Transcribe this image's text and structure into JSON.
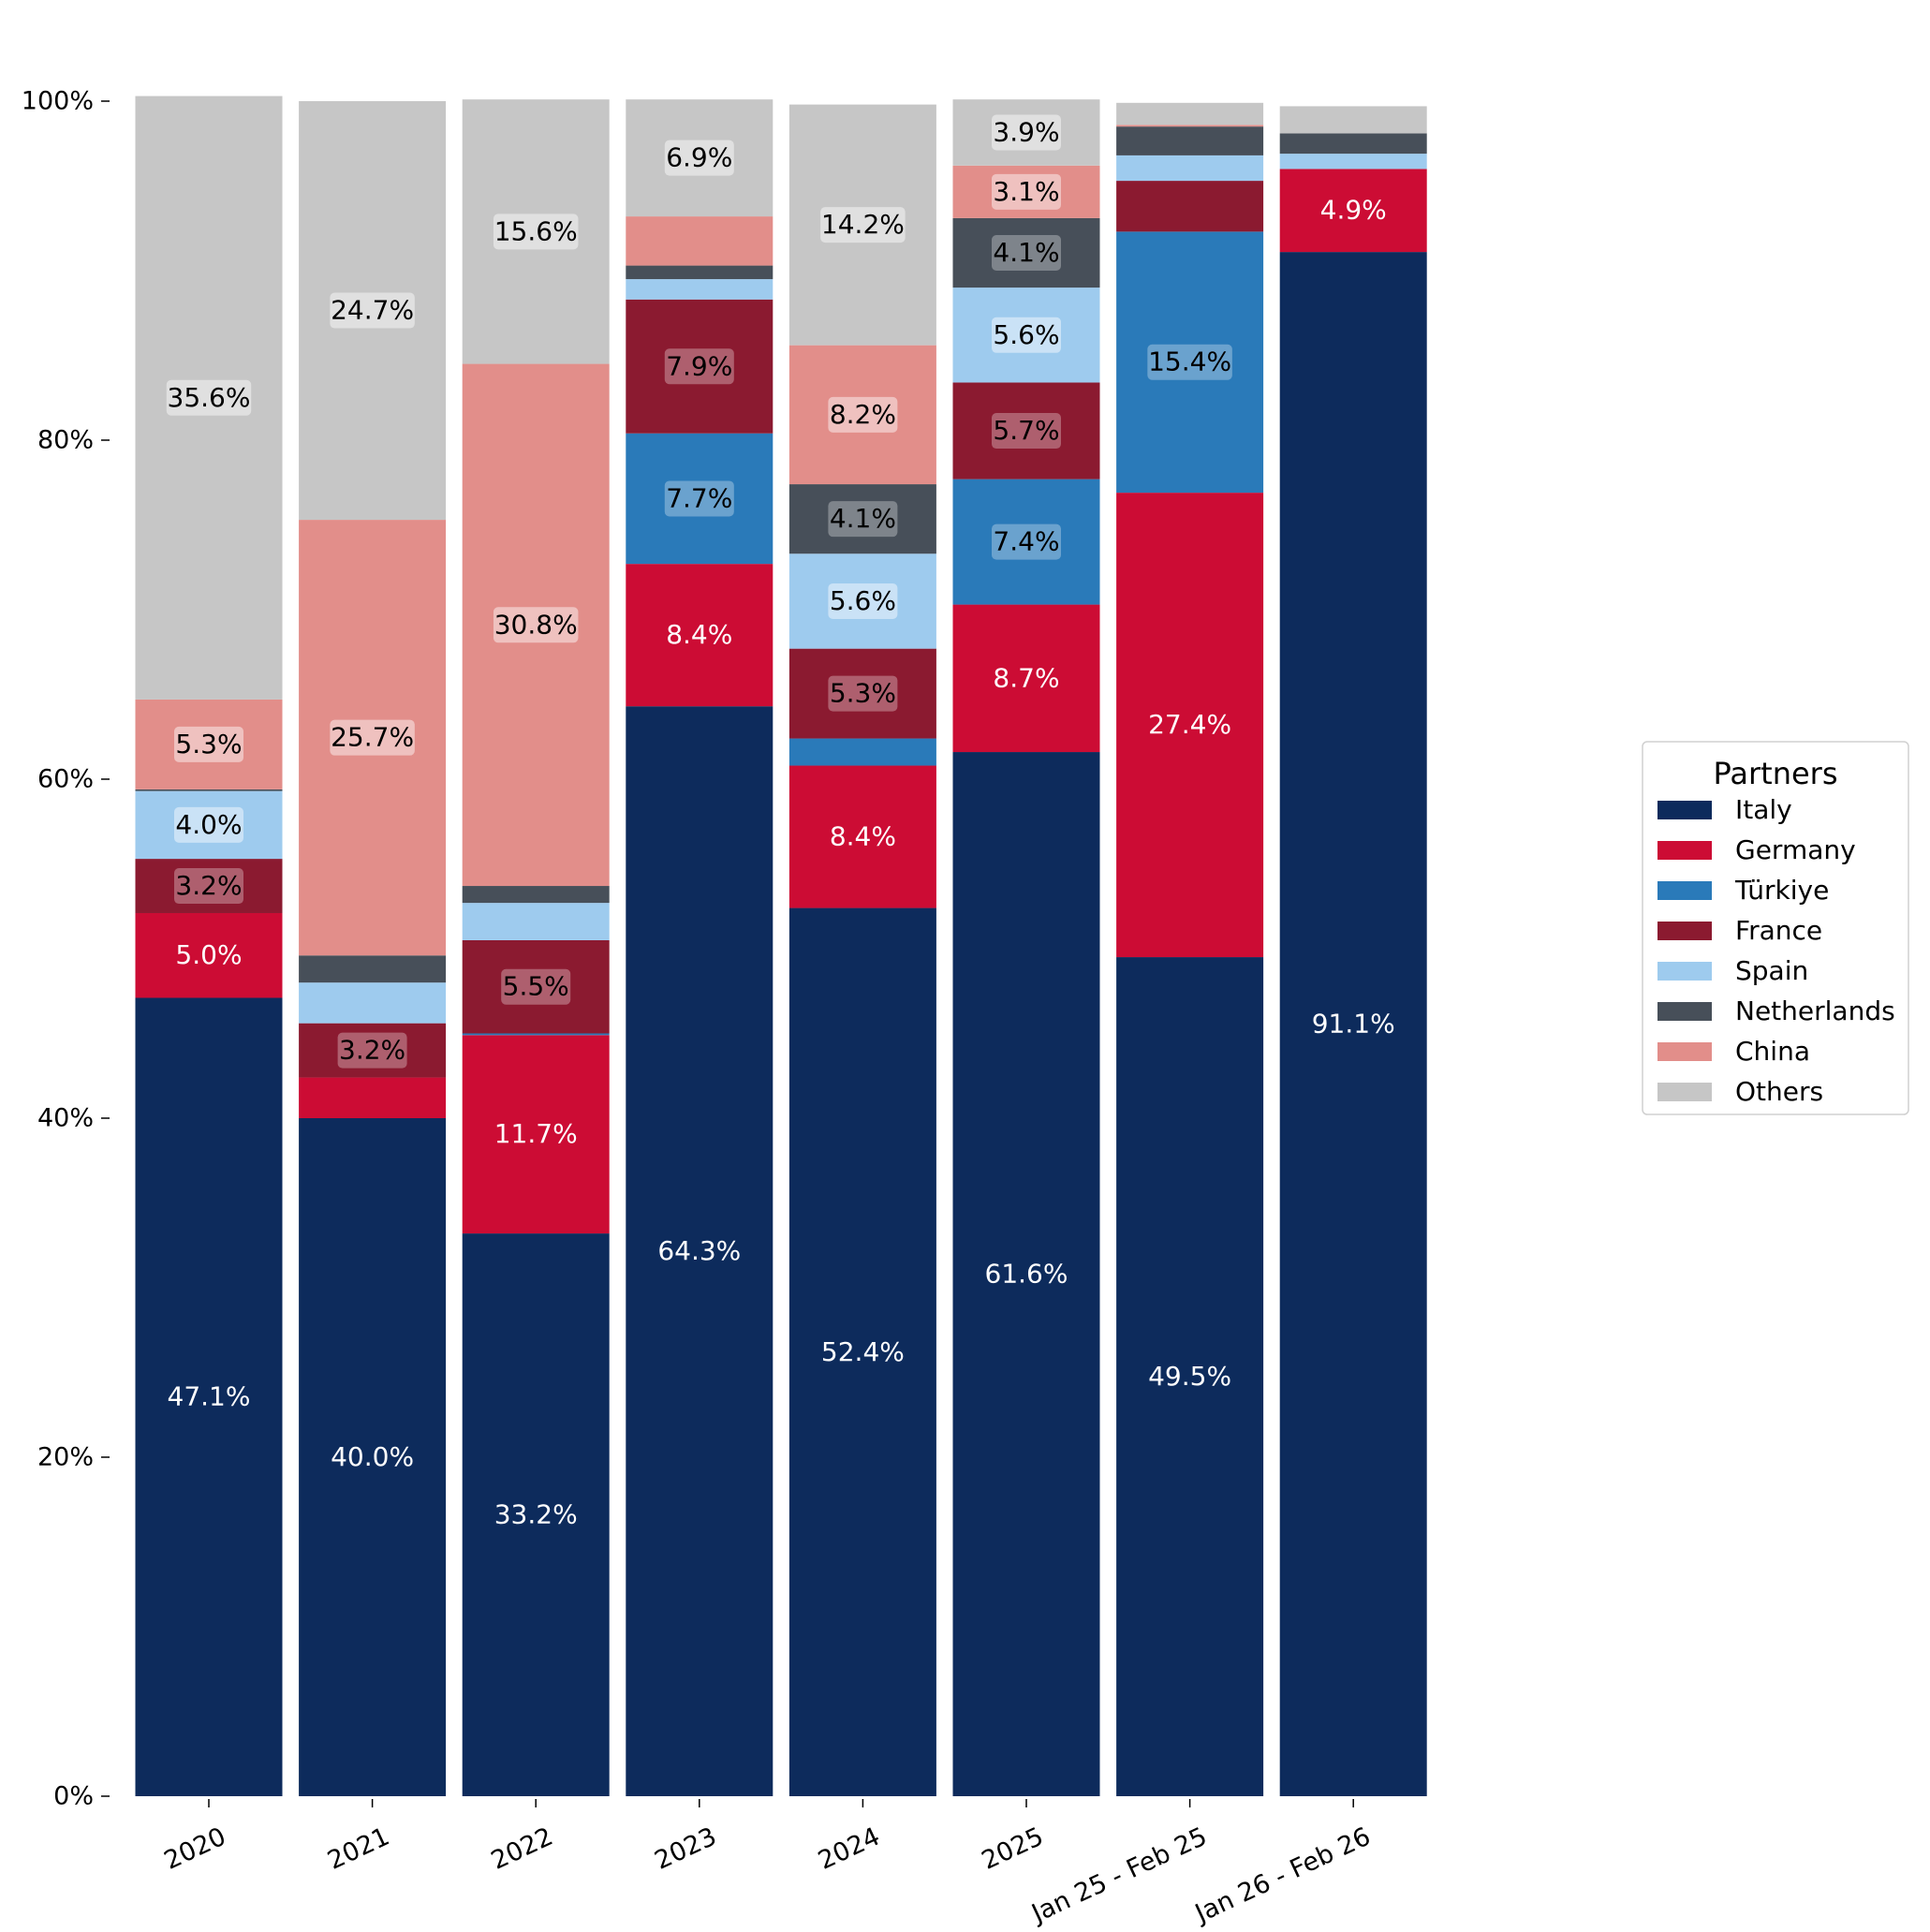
{
  "chart_data": {
    "type": "bar",
    "stacked": true,
    "title": "",
    "xlabel": "",
    "ylabel": "",
    "ylim": [
      0,
      1
    ],
    "y_ticks": [
      {
        "value": 0.0,
        "label": "0%"
      },
      {
        "value": 0.2,
        "label": "20%"
      },
      {
        "value": 0.4,
        "label": "40%"
      },
      {
        "value": 0.6,
        "label": "60%"
      },
      {
        "value": 0.8,
        "label": "80%"
      },
      {
        "value": 1.0,
        "label": "100%"
      }
    ],
    "categories": [
      "2020",
      "2021",
      "2022",
      "2023",
      "2024",
      "2025",
      "Jan 25 - Feb 25",
      "Jan 26 - Feb 26"
    ],
    "legend": {
      "title": "Partners",
      "placement": "right"
    },
    "grid": false,
    "series": [
      {
        "name": "Italy",
        "color": "#0d2b5c",
        "values": [
          0.471,
          0.4,
          0.332,
          0.643,
          0.524,
          0.616,
          0.495,
          0.911
        ],
        "labels": [
          "47.1%",
          "40.0%",
          "33.2%",
          "64.3%",
          "52.4%",
          "61.6%",
          "49.5%",
          "91.1%"
        ]
      },
      {
        "name": "Germany",
        "color": "#cc0c34",
        "values": [
          0.05,
          0.024,
          0.117,
          0.084,
          0.084,
          0.087,
          0.274,
          0.049
        ],
        "labels": [
          "5.0%",
          "",
          "11.7%",
          "8.4%",
          "8.4%",
          "8.7%",
          "27.4%",
          "4.9%"
        ]
      },
      {
        "name": "Türkiye",
        "color": "#2a7ab9",
        "values": [
          0.0,
          0.0,
          0.001,
          0.077,
          0.016,
          0.074,
          0.154,
          0.0
        ],
        "labels": [
          "",
          "",
          "",
          "7.7%",
          "",
          "7.4%",
          "15.4%",
          ""
        ]
      },
      {
        "name": "France",
        "color": "#8b1a30",
        "values": [
          0.032,
          0.032,
          0.055,
          0.079,
          0.053,
          0.057,
          0.03,
          0.0
        ],
        "labels": [
          "3.2%",
          "3.2%",
          "5.5%",
          "7.9%",
          "5.3%",
          "5.7%",
          "",
          ""
        ]
      },
      {
        "name": "Spain",
        "color": "#9ecbee",
        "values": [
          0.04,
          0.024,
          0.022,
          0.012,
          0.056,
          0.056,
          0.015,
          0.009
        ],
        "labels": [
          "4.0%",
          "",
          "",
          "",
          "5.6%",
          "5.6%",
          "",
          ""
        ]
      },
      {
        "name": "Netherlands",
        "color": "#474f59",
        "values": [
          0.001,
          0.016,
          0.01,
          0.008,
          0.041,
          0.041,
          0.017,
          0.012
        ],
        "labels": [
          "",
          "",
          "",
          "",
          "4.1%",
          "4.1%",
          "",
          ""
        ]
      },
      {
        "name": "China",
        "color": "#e28e8a",
        "values": [
          0.053,
          0.257,
          0.308,
          0.029,
          0.082,
          0.031,
          0.001,
          0.0
        ],
        "labels": [
          "5.3%",
          "25.7%",
          "30.8%",
          "",
          "8.2%",
          "3.1%",
          "",
          ""
        ]
      },
      {
        "name": "Others",
        "color": "#c6c6c6",
        "values": [
          0.356,
          0.247,
          0.156,
          0.069,
          0.142,
          0.039,
          0.013,
          0.016
        ],
        "labels": [
          "35.6%",
          "24.7%",
          "15.6%",
          "6.9%",
          "14.2%",
          "3.9%",
          "",
          ""
        ]
      }
    ]
  }
}
